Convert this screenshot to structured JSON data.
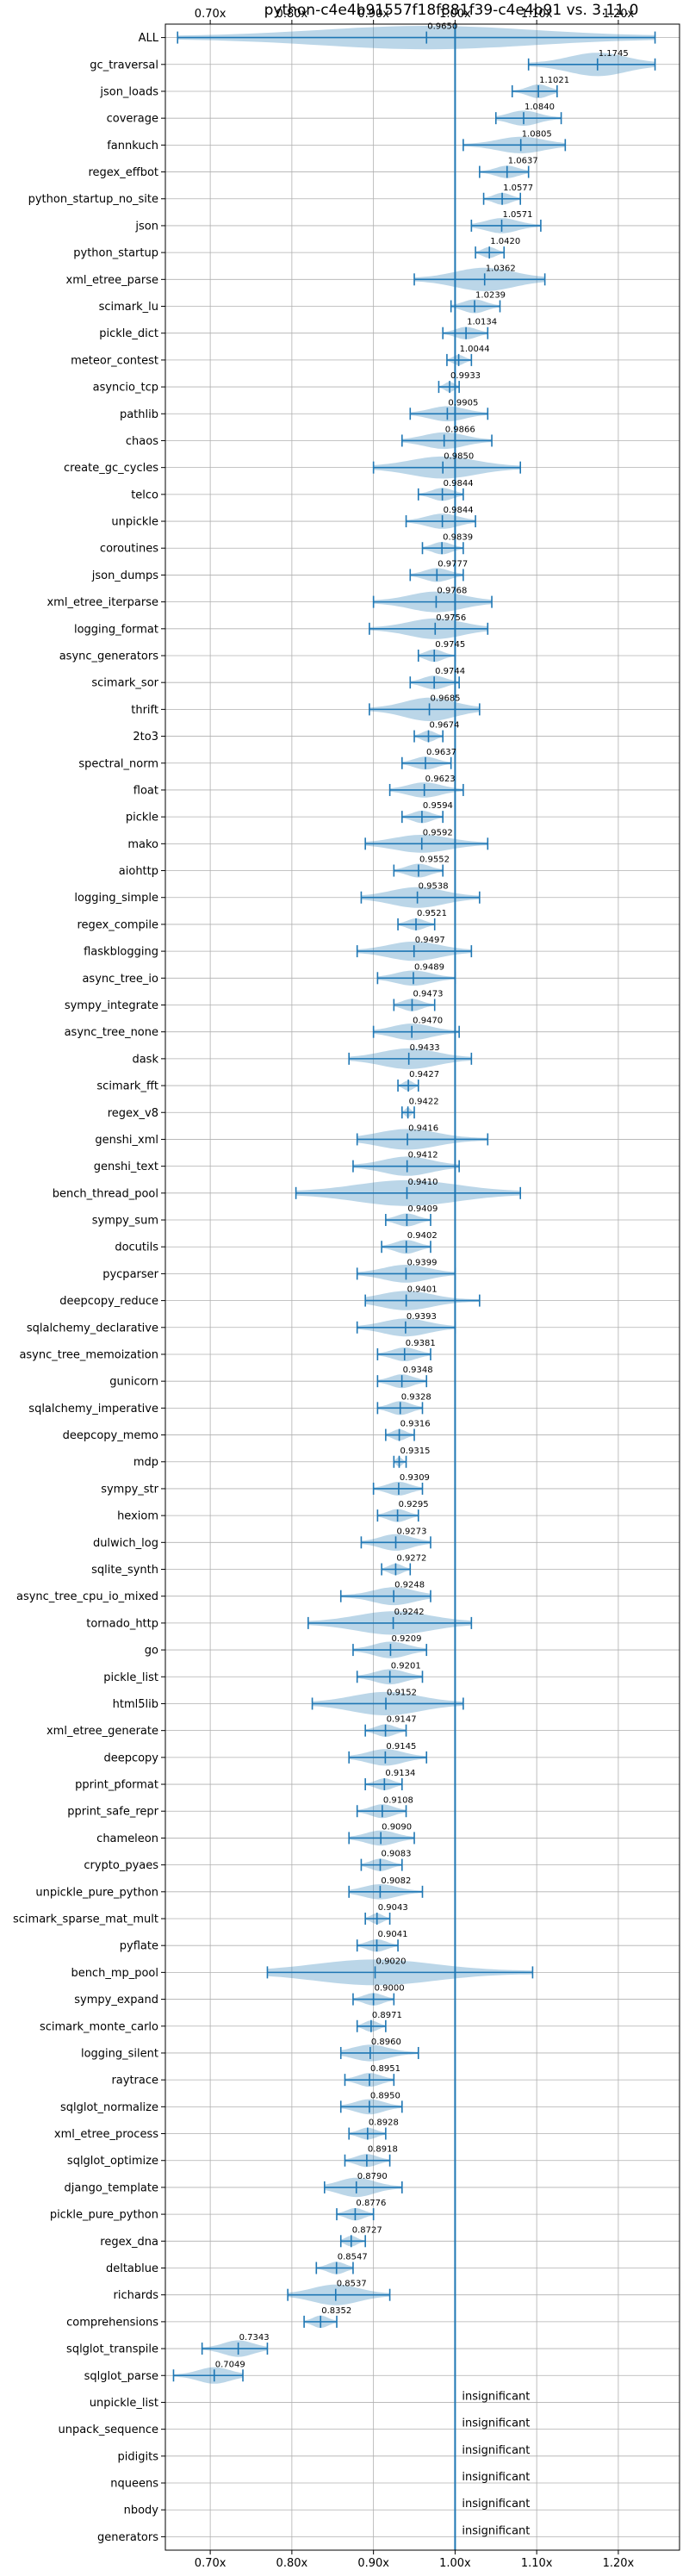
{
  "chart_data": {
    "type": "violin",
    "title": "python-c4e4b91557f18f881f39-c4e4b91 vs. 3.11.0",
    "xlim": [
      0.645,
      1.275
    ],
    "x_ticks": [
      0.7,
      0.8,
      0.9,
      1.0,
      1.1,
      1.2
    ],
    "x_tick_labels": [
      "0.70x",
      "0.80x",
      "0.90x",
      "1.00x",
      "1.10x",
      "1.20x"
    ],
    "x_ticks_top": true,
    "reference_line": 1.0,
    "grid": true,
    "color": "#1f77b4",
    "insignificant_label": "insignificant",
    "benchmarks": [
      {
        "name": "ALL",
        "value": 0.965,
        "label": "0.9650",
        "min": 0.66,
        "max": 1.245,
        "w": 0.06
      },
      {
        "name": "gc_traversal",
        "value": 1.1745,
        "label": "1.1745",
        "min": 1.09,
        "max": 1.245,
        "w": 0.06
      },
      {
        "name": "json_loads",
        "value": 1.1021,
        "label": "1.1021",
        "min": 1.07,
        "max": 1.125,
        "w": 0.025
      },
      {
        "name": "coverage",
        "value": 1.084,
        "label": "1.0840",
        "min": 1.05,
        "max": 1.13,
        "w": 0.03
      },
      {
        "name": "fannkuch",
        "value": 1.0805,
        "label": "1.0805",
        "min": 1.01,
        "max": 1.135,
        "w": 0.035
      },
      {
        "name": "regex_effbot",
        "value": 1.0637,
        "label": "1.0637",
        "min": 1.03,
        "max": 1.09,
        "w": 0.02
      },
      {
        "name": "python_startup_no_site",
        "value": 1.0577,
        "label": "1.0577",
        "min": 1.035,
        "max": 1.08,
        "w": 0.018
      },
      {
        "name": "json",
        "value": 1.0571,
        "label": "1.0571",
        "min": 1.02,
        "max": 1.105,
        "w": 0.03
      },
      {
        "name": "python_startup",
        "value": 1.042,
        "label": "1.0420",
        "min": 1.025,
        "max": 1.06,
        "w": 0.015
      },
      {
        "name": "xml_etree_parse",
        "value": 1.0362,
        "label": "1.0362",
        "min": 0.95,
        "max": 1.11,
        "w": 0.06
      },
      {
        "name": "scimark_lu",
        "value": 1.0239,
        "label": "1.0239",
        "min": 0.995,
        "max": 1.055,
        "w": 0.025
      },
      {
        "name": "pickle_dict",
        "value": 1.0134,
        "label": "1.0134",
        "min": 0.985,
        "max": 1.04,
        "w": 0.02
      },
      {
        "name": "meteor_contest",
        "value": 1.0044,
        "label": "1.0044",
        "min": 0.99,
        "max": 1.02,
        "w": 0.012
      },
      {
        "name": "asyncio_tcp",
        "value": 0.9933,
        "label": "0.9933",
        "min": 0.98,
        "max": 1.005,
        "w": 0.012
      },
      {
        "name": "pathlib",
        "value": 0.9905,
        "label": "0.9905",
        "min": 0.945,
        "max": 1.04,
        "w": 0.03
      },
      {
        "name": "chaos",
        "value": 0.9866,
        "label": "0.9866",
        "min": 0.935,
        "max": 1.045,
        "w": 0.035
      },
      {
        "name": "create_gc_cycles",
        "value": 0.985,
        "label": "0.9850",
        "min": 0.9,
        "max": 1.08,
        "w": 0.055
      },
      {
        "name": "telco",
        "value": 0.9844,
        "label": "0.9844",
        "min": 0.955,
        "max": 1.01,
        "w": 0.022
      },
      {
        "name": "unpickle",
        "value": 0.9844,
        "label": "0.9844",
        "min": 0.94,
        "max": 1.025,
        "w": 0.03
      },
      {
        "name": "coroutines",
        "value": 0.9839,
        "label": "0.9839",
        "min": 0.96,
        "max": 1.01,
        "w": 0.02
      },
      {
        "name": "json_dumps",
        "value": 0.9777,
        "label": "0.9777",
        "min": 0.945,
        "max": 1.01,
        "w": 0.025
      },
      {
        "name": "xml_etree_iterparse",
        "value": 0.9768,
        "label": "0.9768",
        "min": 0.9,
        "max": 1.045,
        "w": 0.05
      },
      {
        "name": "logging_format",
        "value": 0.9756,
        "label": "0.9756",
        "min": 0.895,
        "max": 1.04,
        "w": 0.05
      },
      {
        "name": "async_generators",
        "value": 0.9745,
        "label": "0.9745",
        "min": 0.955,
        "max": 1.0,
        "w": 0.02
      },
      {
        "name": "scimark_sor",
        "value": 0.9744,
        "label": "0.9744",
        "min": 0.945,
        "max": 1.005,
        "w": 0.025
      },
      {
        "name": "thrift",
        "value": 0.9685,
        "label": "0.9685",
        "min": 0.895,
        "max": 1.03,
        "w": 0.06
      },
      {
        "name": "2to3",
        "value": 0.9674,
        "label": "0.9674",
        "min": 0.95,
        "max": 0.985,
        "w": 0.016
      },
      {
        "name": "spectral_norm",
        "value": 0.9637,
        "label": "0.9637",
        "min": 0.935,
        "max": 0.995,
        "w": 0.022
      },
      {
        "name": "float",
        "value": 0.9623,
        "label": "0.9623",
        "min": 0.92,
        "max": 1.01,
        "w": 0.03
      },
      {
        "name": "pickle",
        "value": 0.9594,
        "label": "0.9594",
        "min": 0.935,
        "max": 0.985,
        "w": 0.02
      },
      {
        "name": "mako",
        "value": 0.9592,
        "label": "0.9592",
        "min": 0.89,
        "max": 1.04,
        "w": 0.04
      },
      {
        "name": "aiohttp",
        "value": 0.9552,
        "label": "0.9552",
        "min": 0.925,
        "max": 0.985,
        "w": 0.025
      },
      {
        "name": "logging_simple",
        "value": 0.9538,
        "label": "0.9538",
        "min": 0.885,
        "max": 1.03,
        "w": 0.05
      },
      {
        "name": "regex_compile",
        "value": 0.9521,
        "label": "0.9521",
        "min": 0.93,
        "max": 0.975,
        "w": 0.018
      },
      {
        "name": "flaskblogging",
        "value": 0.9497,
        "label": "0.9497",
        "min": 0.88,
        "max": 1.02,
        "w": 0.045
      },
      {
        "name": "async_tree_io",
        "value": 0.9489,
        "label": "0.9489",
        "min": 0.905,
        "max": 1.0,
        "w": 0.03
      },
      {
        "name": "sympy_integrate",
        "value": 0.9473,
        "label": "0.9473",
        "min": 0.925,
        "max": 0.975,
        "w": 0.02
      },
      {
        "name": "async_tree_none",
        "value": 0.947,
        "label": "0.9470",
        "min": 0.9,
        "max": 1.005,
        "w": 0.035
      },
      {
        "name": "dask",
        "value": 0.9433,
        "label": "0.9433",
        "min": 0.87,
        "max": 1.02,
        "w": 0.05
      },
      {
        "name": "scimark_fft",
        "value": 0.9427,
        "label": "0.9427",
        "min": 0.93,
        "max": 0.955,
        "w": 0.012
      },
      {
        "name": "regex_v8",
        "value": 0.9422,
        "label": "0.9422",
        "min": 0.935,
        "max": 0.95,
        "w": 0.01
      },
      {
        "name": "genshi_xml",
        "value": 0.9416,
        "label": "0.9416",
        "min": 0.88,
        "max": 1.04,
        "w": 0.05
      },
      {
        "name": "genshi_text",
        "value": 0.9412,
        "label": "0.9412",
        "min": 0.875,
        "max": 1.005,
        "w": 0.045
      },
      {
        "name": "bench_thread_pool",
        "value": 0.941,
        "label": "0.9410",
        "min": 0.805,
        "max": 1.08,
        "w": 0.075
      },
      {
        "name": "sympy_sum",
        "value": 0.9409,
        "label": "0.9409",
        "min": 0.915,
        "max": 0.97,
        "w": 0.022
      },
      {
        "name": "docutils",
        "value": 0.9402,
        "label": "0.9402",
        "min": 0.91,
        "max": 0.97,
        "w": 0.025
      },
      {
        "name": "pycparser",
        "value": 0.9399,
        "label": "0.9399",
        "min": 0.88,
        "max": 1.0,
        "w": 0.04
      },
      {
        "name": "deepcopy_reduce",
        "value": 0.9401,
        "label": "0.9401",
        "min": 0.89,
        "max": 1.03,
        "w": 0.045
      },
      {
        "name": "sqlalchemy_declarative",
        "value": 0.9393,
        "label": "0.9393",
        "min": 0.88,
        "max": 1.0,
        "w": 0.04
      },
      {
        "name": "async_tree_memoization",
        "value": 0.9381,
        "label": "0.9381",
        "min": 0.905,
        "max": 0.97,
        "w": 0.025
      },
      {
        "name": "gunicorn",
        "value": 0.9348,
        "label": "0.9348",
        "min": 0.905,
        "max": 0.965,
        "w": 0.025
      },
      {
        "name": "sqlalchemy_imperative",
        "value": 0.9328,
        "label": "0.9328",
        "min": 0.905,
        "max": 0.96,
        "w": 0.025
      },
      {
        "name": "deepcopy_memo",
        "value": 0.9316,
        "label": "0.9316",
        "min": 0.915,
        "max": 0.95,
        "w": 0.016
      },
      {
        "name": "mdp",
        "value": 0.9315,
        "label": "0.9315",
        "min": 0.925,
        "max": 0.94,
        "w": 0.01
      },
      {
        "name": "sympy_str",
        "value": 0.9309,
        "label": "0.9309",
        "min": 0.9,
        "max": 0.96,
        "w": 0.025
      },
      {
        "name": "hexiom",
        "value": 0.9295,
        "label": "0.9295",
        "min": 0.905,
        "max": 0.955,
        "w": 0.022
      },
      {
        "name": "dulwich_log",
        "value": 0.9273,
        "label": "0.9273",
        "min": 0.885,
        "max": 0.97,
        "w": 0.035
      },
      {
        "name": "sqlite_synth",
        "value": 0.9272,
        "label": "0.9272",
        "min": 0.91,
        "max": 0.945,
        "w": 0.016
      },
      {
        "name": "async_tree_cpu_io_mixed",
        "value": 0.9248,
        "label": "0.9248",
        "min": 0.86,
        "max": 0.97,
        "w": 0.04
      },
      {
        "name": "tornado_http",
        "value": 0.9242,
        "label": "0.9242",
        "min": 0.82,
        "max": 1.02,
        "w": 0.06
      },
      {
        "name": "go",
        "value": 0.9209,
        "label": "0.9209",
        "min": 0.875,
        "max": 0.965,
        "w": 0.035
      },
      {
        "name": "pickle_list",
        "value": 0.9201,
        "label": "0.9201",
        "min": 0.88,
        "max": 0.96,
        "w": 0.03
      },
      {
        "name": "html5lib",
        "value": 0.9152,
        "label": "0.9152",
        "min": 0.825,
        "max": 1.01,
        "w": 0.06
      },
      {
        "name": "xml_etree_generate",
        "value": 0.9147,
        "label": "0.9147",
        "min": 0.89,
        "max": 0.94,
        "w": 0.02
      },
      {
        "name": "deepcopy",
        "value": 0.9145,
        "label": "0.9145",
        "min": 0.87,
        "max": 0.965,
        "w": 0.035
      },
      {
        "name": "pprint_pformat",
        "value": 0.9134,
        "label": "0.9134",
        "min": 0.89,
        "max": 0.935,
        "w": 0.018
      },
      {
        "name": "pprint_safe_repr",
        "value": 0.9108,
        "label": "0.9108",
        "min": 0.88,
        "max": 0.94,
        "w": 0.025
      },
      {
        "name": "chameleon",
        "value": 0.909,
        "label": "0.9090",
        "min": 0.87,
        "max": 0.95,
        "w": 0.03
      },
      {
        "name": "crypto_pyaes",
        "value": 0.9083,
        "label": "0.9083",
        "min": 0.885,
        "max": 0.935,
        "w": 0.02
      },
      {
        "name": "unpickle_pure_python",
        "value": 0.9082,
        "label": "0.9082",
        "min": 0.87,
        "max": 0.96,
        "w": 0.03
      },
      {
        "name": "scimark_sparse_mat_mult",
        "value": 0.9043,
        "label": "0.9043",
        "min": 0.89,
        "max": 0.92,
        "w": 0.014
      },
      {
        "name": "pyflate",
        "value": 0.9041,
        "label": "0.9041",
        "min": 0.88,
        "max": 0.93,
        "w": 0.02
      },
      {
        "name": "bench_mp_pool",
        "value": 0.902,
        "label": "0.9020",
        "min": 0.77,
        "max": 1.095,
        "w": 0.075
      },
      {
        "name": "sympy_expand",
        "value": 0.9,
        "label": "0.9000",
        "min": 0.875,
        "max": 0.925,
        "w": 0.02
      },
      {
        "name": "scimark_monte_carlo",
        "value": 0.8971,
        "label": "0.8971",
        "min": 0.88,
        "max": 0.915,
        "w": 0.016
      },
      {
        "name": "logging_silent",
        "value": 0.896,
        "label": "0.8960",
        "min": 0.86,
        "max": 0.955,
        "w": 0.035
      },
      {
        "name": "raytrace",
        "value": 0.8951,
        "label": "0.8951",
        "min": 0.865,
        "max": 0.925,
        "w": 0.025
      },
      {
        "name": "sqlglot_normalize",
        "value": 0.895,
        "label": "0.8950",
        "min": 0.86,
        "max": 0.935,
        "w": 0.03
      },
      {
        "name": "xml_etree_process",
        "value": 0.8928,
        "label": "0.8928",
        "min": 0.87,
        "max": 0.915,
        "w": 0.018
      },
      {
        "name": "sqlglot_optimize",
        "value": 0.8918,
        "label": "0.8918",
        "min": 0.865,
        "max": 0.92,
        "w": 0.022
      },
      {
        "name": "django_template",
        "value": 0.879,
        "label": "0.8790",
        "min": 0.84,
        "max": 0.935,
        "w": 0.045
      },
      {
        "name": "pickle_pure_python",
        "value": 0.8776,
        "label": "0.8776",
        "min": 0.855,
        "max": 0.9,
        "w": 0.02
      },
      {
        "name": "regex_dna",
        "value": 0.8727,
        "label": "0.8727",
        "min": 0.86,
        "max": 0.89,
        "w": 0.014
      },
      {
        "name": "deltablue",
        "value": 0.8547,
        "label": "0.8547",
        "min": 0.83,
        "max": 0.875,
        "w": 0.02
      },
      {
        "name": "richards",
        "value": 0.8537,
        "label": "0.8537",
        "min": 0.795,
        "max": 0.92,
        "w": 0.05
      },
      {
        "name": "comprehensions",
        "value": 0.8352,
        "label": "0.8352",
        "min": 0.815,
        "max": 0.855,
        "w": 0.02
      },
      {
        "name": "sqlglot_transpile",
        "value": 0.7343,
        "label": "0.7343",
        "min": 0.69,
        "max": 0.77,
        "w": 0.035
      },
      {
        "name": "sqlglot_parse",
        "value": 0.7049,
        "label": "0.7049",
        "min": 0.655,
        "max": 0.74,
        "w": 0.035
      },
      {
        "name": "unpickle_list",
        "value": null,
        "label": "insignificant"
      },
      {
        "name": "unpack_sequence",
        "value": null,
        "label": "insignificant"
      },
      {
        "name": "pidigits",
        "value": null,
        "label": "insignificant"
      },
      {
        "name": "nqueens",
        "value": null,
        "label": "insignificant"
      },
      {
        "name": "nbody",
        "value": null,
        "label": "insignificant"
      },
      {
        "name": "generators",
        "value": null,
        "label": "insignificant"
      }
    ]
  }
}
